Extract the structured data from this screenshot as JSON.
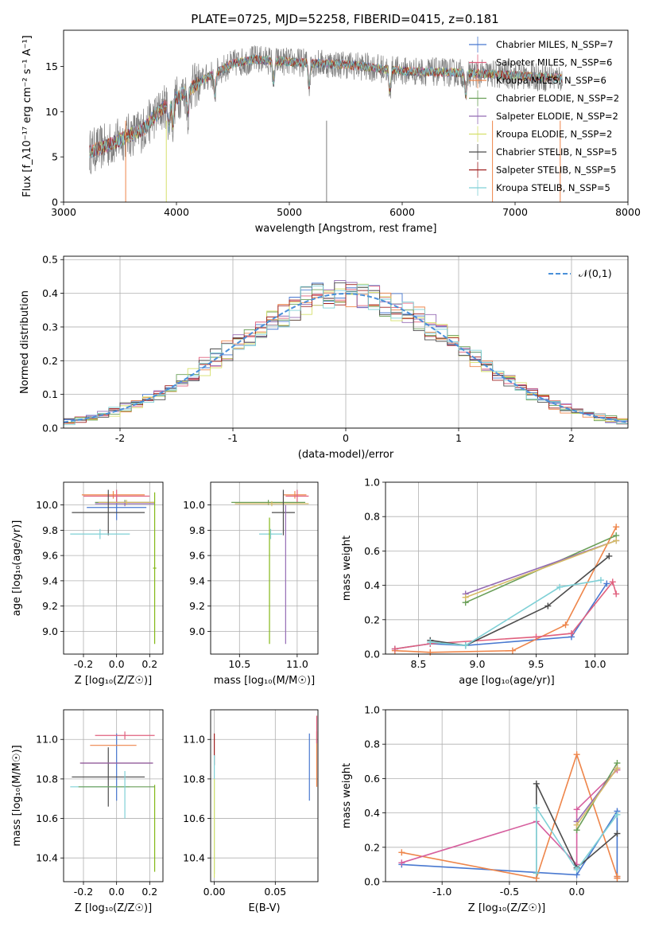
{
  "title": "PLATE=0725, MJD=52258, FIBERID=0415, z=0.181",
  "palette": [
    "#4878d0",
    "#ee854a",
    "#e0607e",
    "#6a9f58",
    "#956cb4",
    "#d5bb67",
    "#4c4c4c",
    "#9e1e1e",
    "#7fd0d6",
    "#d65f9e",
    "#84b818",
    "#8c8c8c"
  ],
  "chart_data": [
    {
      "id": "spectrum",
      "type": "line",
      "xlabel": "wavelength [Angstrom, rest frame]",
      "ylabel": "Flux [f_λ10⁻¹⁷ erg cm⁻² s⁻¹ A⁻¹]",
      "xlim": [
        3000,
        8000
      ],
      "ylim": [
        0,
        19
      ],
      "xticks": [
        3000,
        4000,
        5000,
        6000,
        7000,
        8000
      ],
      "yticks": [
        0,
        5,
        10,
        15
      ],
      "grid": false,
      "legend_position": "right",
      "continuum": {
        "x": [
          3230,
          3400,
          3550,
          3700,
          3800,
          3900,
          4000,
          4100,
          4200,
          4300,
          4500,
          4700,
          5000,
          5500,
          6000,
          6500,
          7000,
          7400
        ],
        "y": [
          5.6,
          6.3,
          7.2,
          8.0,
          9.4,
          10.6,
          11.5,
          12.3,
          13.2,
          14.0,
          15.3,
          15.8,
          15.5,
          15.2,
          14.5,
          14.3,
          14.0,
          13.7
        ]
      },
      "series": [
        {
          "name": "Chabrier MILES, N_SSP=7",
          "color": "#4878d0"
        },
        {
          "name": "Salpeter MILES, N_SSP=6",
          "color": "#e0607e"
        },
        {
          "name": "Kroupa MILES, N_SSP=6",
          "color": "#ee854a"
        },
        {
          "name": "Chabrier ELODIE, N_SSP=2",
          "color": "#6a9f58"
        },
        {
          "name": "Salpeter ELODIE, N_SSP=2",
          "color": "#956cb4"
        },
        {
          "name": "Kroupa ELODIE, N_SSP=2",
          "color": "#d5e06a"
        },
        {
          "name": "Chabrier STELIB, N_SSP=5",
          "color": "#4c4c4c"
        },
        {
          "name": "Salpeter STELIB, N_SSP=5",
          "color": "#9e1e1e"
        },
        {
          "name": "Kroupa STELIB, N_SSP=5",
          "color": "#7fd0d6"
        }
      ]
    },
    {
      "id": "residuals",
      "type": "histogram",
      "xlabel": "(data-model)/error",
      "ylabel": "Normed distribution",
      "xlim": [
        -2.5,
        2.5
      ],
      "ylim": [
        0,
        0.51
      ],
      "xticks": [
        -2,
        -1,
        0,
        1,
        2
      ],
      "yticks": [
        0.0,
        0.1,
        0.2,
        0.3,
        0.4,
        0.5
      ],
      "grid": true,
      "legend_position": "top-right",
      "legend": "𝒩(0,1)",
      "bin_width": 0.1,
      "reference_curve": "normal(0,1)"
    },
    {
      "id": "age_vs_z",
      "type": "scatter",
      "xlabel": "Z [log₁₀(Z/Z☉)]",
      "ylabel": "age  [log₁₀(age/yr)]",
      "xlim": [
        -0.32,
        0.28
      ],
      "ylim": [
        8.82,
        10.18
      ],
      "xticks": [
        -0.2,
        0.0,
        0.2
      ],
      "yticks": [
        9.0,
        9.2,
        9.4,
        9.6,
        9.8,
        10.0
      ],
      "grid": true,
      "points": [
        {
          "x": 0.0,
          "y": 9.98,
          "xerr": 0.18,
          "yerr": 0.1,
          "color": "#4878d0"
        },
        {
          "x": -0.02,
          "y": 10.08,
          "xerr": 0.19,
          "yerr": 0.03,
          "color": "#ee854a"
        },
        {
          "x": 0.0,
          "y": 10.07,
          "xerr": 0.2,
          "yerr": 0.05,
          "color": "#e0607e"
        },
        {
          "x": 0.05,
          "y": 10.02,
          "xerr": 0.18,
          "yerr": 0.02,
          "color": "#6a9f58"
        },
        {
          "x": 0.05,
          "y": 10.01,
          "xerr": 0.18,
          "yerr": 0.02,
          "color": "#956cb4"
        },
        {
          "x": 0.06,
          "y": 10.02,
          "xerr": 0.17,
          "yerr": 0.02,
          "color": "#d5bb67"
        },
        {
          "x": -0.05,
          "y": 9.94,
          "xerr": 0.22,
          "yerr": 0.18,
          "color": "#4c4c4c"
        },
        {
          "x": -0.1,
          "y": 9.77,
          "xerr": 0.18,
          "yerr": 0.04,
          "color": "#7fd0d6"
        },
        {
          "x": 0.23,
          "y": 9.5,
          "xerr": 0.01,
          "yerr": 0.6,
          "color": "#84b818"
        }
      ]
    },
    {
      "id": "age_vs_mass",
      "type": "scatter",
      "xlabel": "mass [log₁₀(M/M☉)]",
      "ylabel": "",
      "xlim": [
        10.25,
        11.18
      ],
      "ylim": [
        8.82,
        10.18
      ],
      "xticks": [
        10.5,
        11.0
      ],
      "yticks": [
        9.0,
        9.2,
        9.4,
        9.6,
        9.8,
        10.0
      ],
      "grid": true,
      "points": [
        {
          "x": 10.98,
          "y": 10.08,
          "xerr": 0.1,
          "yerr": 0.03,
          "color": "#ee854a"
        },
        {
          "x": 11.0,
          "y": 10.07,
          "xerr": 0.1,
          "yerr": 0.05,
          "color": "#e0607e"
        },
        {
          "x": 10.75,
          "y": 10.02,
          "xerr": 0.32,
          "yerr": 0.02,
          "color": "#6a9f58"
        },
        {
          "x": 10.78,
          "y": 10.01,
          "xerr": 0.32,
          "yerr": 0.02,
          "color": "#d5bb67"
        },
        {
          "x": 10.88,
          "y": 9.94,
          "xerr": 0.1,
          "yerr": 0.18,
          "color": "#4c4c4c"
        },
        {
          "x": 10.77,
          "y": 9.77,
          "xerr": 0.1,
          "yerr": 0.04,
          "color": "#7fd0d6"
        },
        {
          "x": 10.76,
          "y": 9.4,
          "xerr": 0.0,
          "yerr": 0.5,
          "color": "#84b818"
        },
        {
          "x": 10.9,
          "y": 9.45,
          "xerr": 0.0,
          "yerr": 0.55,
          "color": "#956cb4"
        }
      ]
    },
    {
      "id": "weight_vs_age",
      "type": "line",
      "xlabel": "age  [log₁₀(age/yr)]",
      "ylabel": "mass weight",
      "xlim": [
        8.22,
        10.28
      ],
      "ylim": [
        0,
        1.0
      ],
      "xticks": [
        8.5,
        9.0,
        9.5,
        10.0
      ],
      "yticks": [
        0.0,
        0.2,
        0.4,
        0.6,
        0.8,
        1.0
      ],
      "grid": true,
      "series": [
        {
          "color": "#4878d0",
          "x": [
            8.3,
            8.6,
            8.9,
            9.8,
            10.1
          ],
          "y": [
            0.03,
            0.06,
            0.05,
            0.1,
            0.41
          ]
        },
        {
          "color": "#ee854a",
          "x": [
            8.3,
            8.6,
            9.3,
            9.75,
            10.18
          ],
          "y": [
            0.02,
            0.01,
            0.02,
            0.17,
            0.74
          ]
        },
        {
          "color": "#e0607e",
          "x": [
            8.3,
            8.6,
            9.5,
            9.8,
            10.15,
            10.18
          ],
          "y": [
            0.03,
            0.06,
            0.1,
            0.12,
            0.42,
            0.35
          ]
        },
        {
          "color": "#6a9f58",
          "x": [
            8.9,
            10.18
          ],
          "y": [
            0.3,
            0.69
          ]
        },
        {
          "color": "#956cb4",
          "x": [
            8.9,
            10.18
          ],
          "y": [
            0.35,
            0.66
          ]
        },
        {
          "color": "#d5bb67",
          "x": [
            8.9,
            10.18
          ],
          "y": [
            0.33,
            0.66
          ]
        },
        {
          "color": "#4c4c4c",
          "x": [
            8.6,
            8.9,
            9.6,
            10.12
          ],
          "y": [
            0.08,
            0.05,
            0.28,
            0.57
          ]
        },
        {
          "color": "#7fd0d6",
          "x": [
            8.6,
            8.9,
            9.7,
            10.05
          ],
          "y": [
            0.07,
            0.05,
            0.39,
            0.43
          ]
        }
      ]
    },
    {
      "id": "mass_vs_z",
      "type": "scatter",
      "xlabel": "Z [log₁₀(Z/Z☉)]",
      "ylabel": "mass [log₁₀(M/M☉)]",
      "xlim": [
        -0.32,
        0.28
      ],
      "ylim": [
        10.28,
        11.15
      ],
      "xticks": [
        -0.2,
        0.0,
        0.2
      ],
      "yticks": [
        10.4,
        10.6,
        10.8,
        11.0
      ],
      "grid": true,
      "points": [
        {
          "x": 0.0,
          "y": 10.86,
          "xerr": 0.0,
          "yerr": 0.17,
          "color": "#4878d0"
        },
        {
          "x": -0.02,
          "y": 10.97,
          "xerr": 0.14,
          "yerr": 0.0,
          "color": "#ee854a"
        },
        {
          "x": 0.05,
          "y": 11.02,
          "xerr": 0.18,
          "yerr": 0.02,
          "color": "#e0607e"
        },
        {
          "x": -0.05,
          "y": 10.81,
          "xerr": 0.22,
          "yerr": 0.15,
          "color": "#4c4c4c"
        },
        {
          "x": 0.0,
          "y": 10.88,
          "xerr": 0.22,
          "yerr": 0.0,
          "color": "#9e1e1e"
        },
        {
          "x": 0.0,
          "y": 10.88,
          "xerr": 0.22,
          "yerr": 0.0,
          "color": "#956cb4"
        },
        {
          "x": -0.1,
          "y": 10.76,
          "xerr": 0.18,
          "yerr": 0.0,
          "color": "#7fd0d6"
        },
        {
          "x": 0.23,
          "y": 10.55,
          "xerr": 0.0,
          "yerr": 0.22,
          "color": "#84b818"
        },
        {
          "x": 0.0,
          "y": 10.76,
          "xerr": 0.23,
          "yerr": 0.0,
          "color": "#6a9f58"
        },
        {
          "x": 0.05,
          "y": 10.72,
          "xerr": 0.0,
          "yerr": 0.12,
          "color": "#7fd0d6"
        }
      ]
    },
    {
      "id": "mass_vs_ebv",
      "type": "scatter",
      "xlabel": "E(B-V)",
      "ylabel": "",
      "xlim": [
        -0.003,
        0.085
      ],
      "ylim": [
        10.28,
        11.15
      ],
      "xticks": [
        0.0,
        0.05
      ],
      "yticks": [
        10.4,
        10.6,
        10.8,
        11.0
      ],
      "grid": true,
      "points": [
        {
          "x": 0.0,
          "y": 10.95,
          "xerr": 0.0,
          "yerr": 0.08,
          "color": "#9e1e1e"
        },
        {
          "x": 0.0,
          "y": 10.62,
          "xerr": 0.0,
          "yerr": 0.3,
          "color": "#7fd0d6"
        },
        {
          "x": 0.0,
          "y": 10.55,
          "xerr": 0.0,
          "yerr": 0.25,
          "color": "#d5e06a"
        },
        {
          "x": 0.078,
          "y": 10.86,
          "xerr": 0.0,
          "yerr": 0.17,
          "color": "#4878d0"
        },
        {
          "x": 0.084,
          "y": 10.9,
          "xerr": 0.0,
          "yerr": 0.14,
          "color": "#ee854a"
        },
        {
          "x": 0.084,
          "y": 11.05,
          "xerr": 0.0,
          "yerr": 0.07,
          "color": "#e0607e"
        }
      ]
    },
    {
      "id": "weight_vs_z",
      "type": "line",
      "xlabel": "Z [log₁₀(Z/Z☉)]",
      "ylabel": "mass weight",
      "xlim": [
        -1.42,
        0.38
      ],
      "ylim": [
        0,
        1.0
      ],
      "xticks": [
        -1.0,
        -0.5,
        0.0
      ],
      "yticks": [
        0.0,
        0.2,
        0.4,
        0.6,
        0.8,
        1.0
      ],
      "grid": true,
      "series": [
        {
          "color": "#4878d0",
          "x": [
            -1.3,
            0.0,
            0.3,
            0.3
          ],
          "y": [
            0.1,
            0.04,
            0.41,
            0.03
          ]
        },
        {
          "color": "#ee854a",
          "x": [
            -1.3,
            -0.3,
            0.0,
            0.3,
            0.3
          ],
          "y": [
            0.17,
            0.02,
            0.74,
            0.03,
            0.02
          ]
        },
        {
          "color": "#d65f9e",
          "x": [
            -1.3,
            -0.3,
            0.0,
            0.0,
            0.3
          ],
          "y": [
            0.11,
            0.35,
            0.1,
            0.42,
            0.65
          ]
        },
        {
          "color": "#6a9f58",
          "x": [
            0.0,
            0.3
          ],
          "y": [
            0.3,
            0.69
          ]
        },
        {
          "color": "#956cb4",
          "x": [
            0.0,
            0.3
          ],
          "y": [
            0.35,
            0.66
          ]
        },
        {
          "color": "#d5bb67",
          "x": [
            0.0,
            0.3
          ],
          "y": [
            0.33,
            0.66
          ]
        },
        {
          "color": "#4c4c4c",
          "x": [
            -0.3,
            -0.3,
            0.0,
            0.3
          ],
          "y": [
            0.05,
            0.57,
            0.08,
            0.28
          ]
        },
        {
          "color": "#7fd0d6",
          "x": [
            -0.3,
            -0.3,
            0.0,
            0.3
          ],
          "y": [
            0.05,
            0.43,
            0.07,
            0.39
          ]
        }
      ]
    }
  ]
}
